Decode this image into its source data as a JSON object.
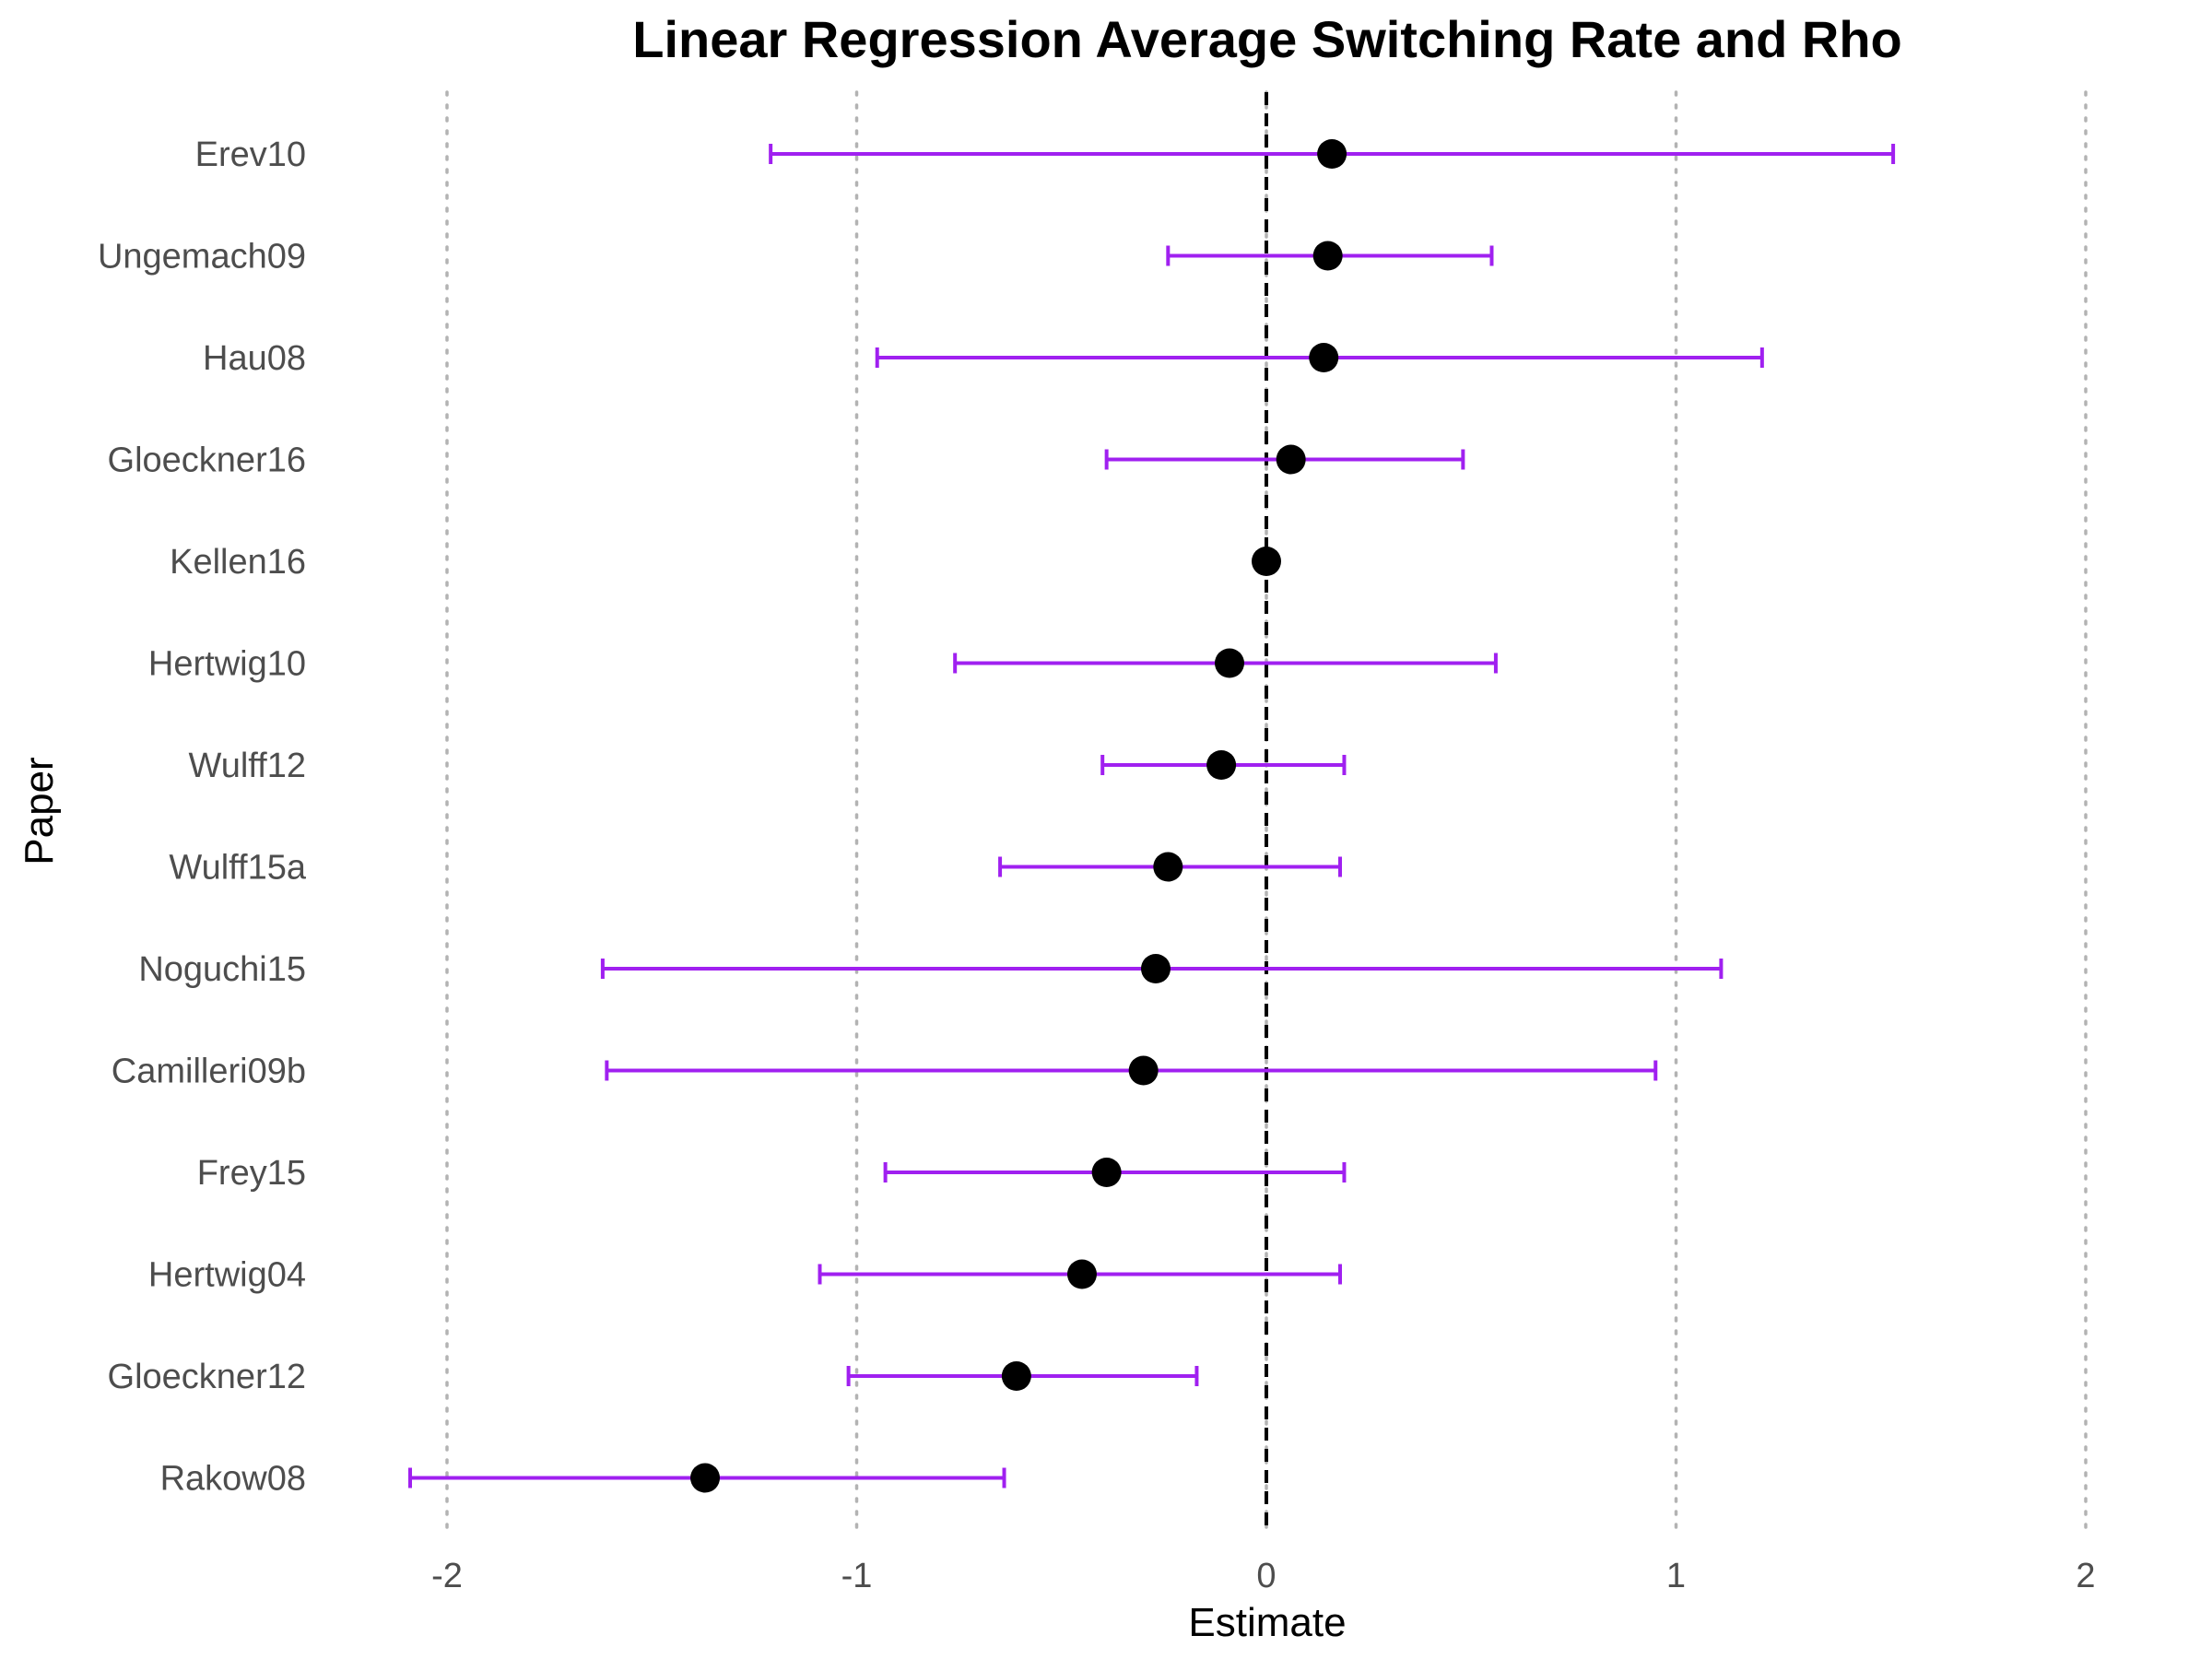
{
  "chart_data": {
    "type": "errorbar",
    "title": "Linear Regression Average Switching Rate and Rho",
    "xlabel": "Estimate",
    "ylabel": "Paper",
    "xlim": [
      -2.2,
      2.1
    ],
    "xticks": [
      -2,
      -1,
      0,
      1,
      2
    ],
    "grid": "vertical-dotted",
    "reference_line": 0,
    "colors": {
      "errorbar": "#a020f0",
      "point": "#000000",
      "grid": "#b3b3b3",
      "reference": "#000000"
    },
    "points": [
      {
        "paper": "Erev10",
        "estimate": 0.16,
        "lower": -1.21,
        "upper": 1.53
      },
      {
        "paper": "Ungemach09",
        "estimate": 0.15,
        "lower": -0.24,
        "upper": 0.55
      },
      {
        "paper": "Hau08",
        "estimate": 0.14,
        "lower": -0.95,
        "upper": 1.21
      },
      {
        "paper": "Gloeckner16",
        "estimate": 0.06,
        "lower": -0.39,
        "upper": 0.48
      },
      {
        "paper": "Kellen16",
        "estimate": 0.0,
        "lower": 0.0,
        "upper": 0.0
      },
      {
        "paper": "Hertwig10",
        "estimate": -0.09,
        "lower": -0.76,
        "upper": 0.56
      },
      {
        "paper": "Wulff12",
        "estimate": -0.11,
        "lower": -0.4,
        "upper": 0.19
      },
      {
        "paper": "Wulff15a",
        "estimate": -0.24,
        "lower": -0.65,
        "upper": 0.18
      },
      {
        "paper": "Noguchi15",
        "estimate": -0.27,
        "lower": -1.62,
        "upper": 1.11
      },
      {
        "paper": "Camilleri09b",
        "estimate": -0.3,
        "lower": -1.61,
        "upper": 0.95
      },
      {
        "paper": "Frey15",
        "estimate": -0.39,
        "lower": -0.93,
        "upper": 0.19
      },
      {
        "paper": "Hertwig04",
        "estimate": -0.45,
        "lower": -1.09,
        "upper": 0.18
      },
      {
        "paper": "Gloeckner12",
        "estimate": -0.61,
        "lower": -1.02,
        "upper": -0.17
      },
      {
        "paper": "Rakow08",
        "estimate": -1.37,
        "lower": -2.09,
        "upper": -0.64
      }
    ]
  }
}
